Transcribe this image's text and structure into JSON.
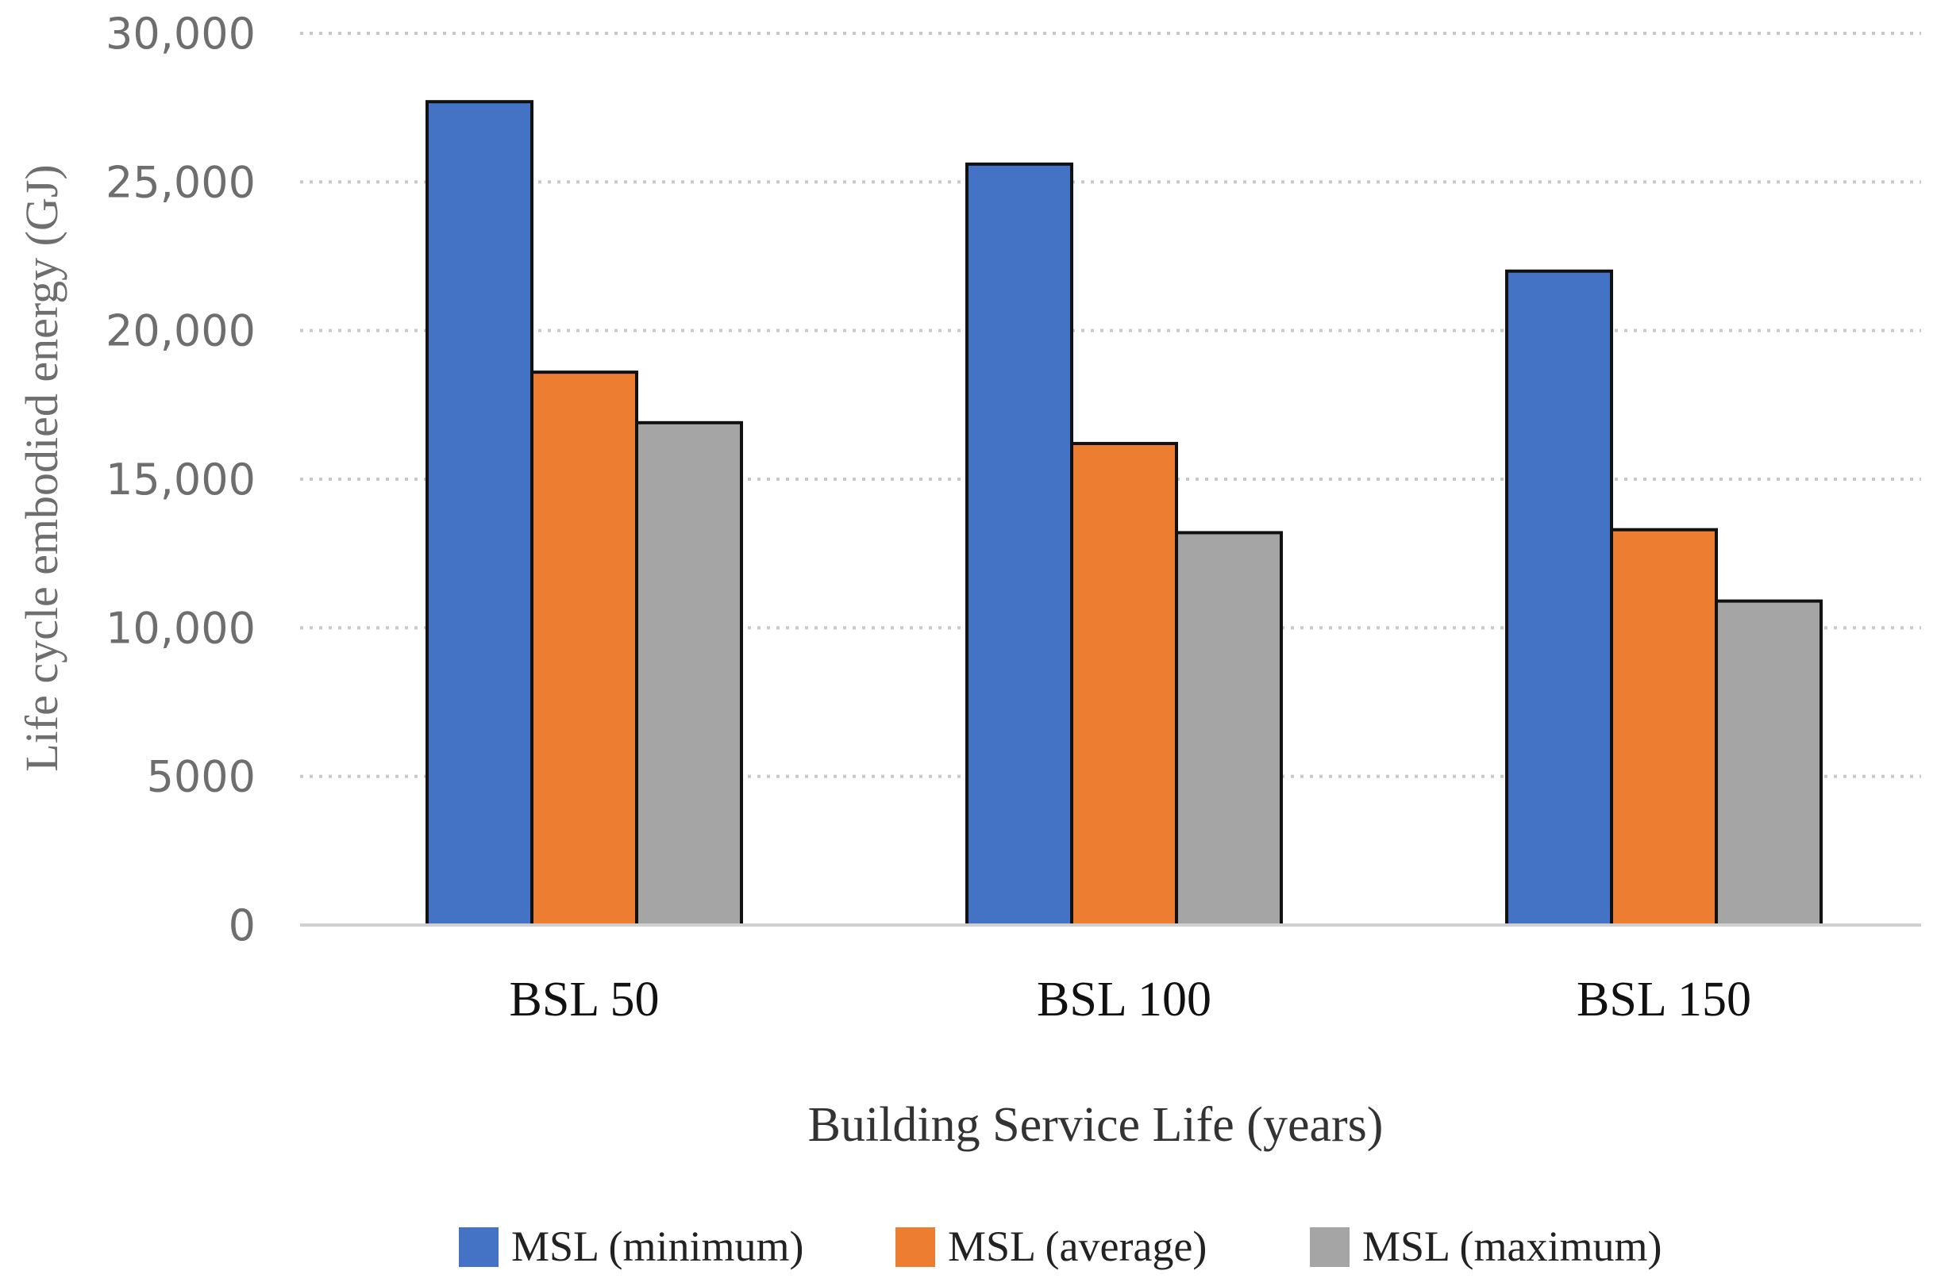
{
  "chart_data": {
    "type": "bar",
    "title": "",
    "xlabel": "Building Service Life (years)",
    "ylabel": "Life cycle embodied energy (GJ)",
    "categories": [
      "BSL 50",
      "BSL 100",
      "BSL 150"
    ],
    "series": [
      {
        "name": "MSL (minimum)",
        "color": "#4472C4",
        "values": [
          27700,
          25600,
          22000
        ]
      },
      {
        "name": "MSL (average)",
        "color": "#ED7D31",
        "values": [
          18600,
          16200,
          13300
        ]
      },
      {
        "name": "MSL (maximum)",
        "color": "#A5A5A5",
        "values": [
          16900,
          13200,
          10900
        ]
      }
    ],
    "ylim": [
      0,
      30000
    ],
    "yticks": [
      0,
      5000,
      10000,
      15000,
      20000,
      25000,
      30000
    ],
    "ytick_labels": [
      "0",
      "5000",
      "10,000",
      "15,000",
      "20,000",
      "25,000",
      "30,000"
    ],
    "grid": "horizontal dotted",
    "legend_position": "bottom"
  }
}
